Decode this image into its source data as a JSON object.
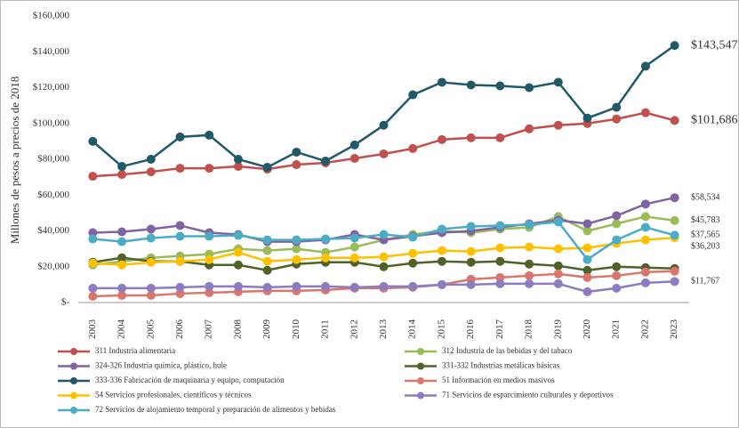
{
  "chart_data": {
    "type": "line",
    "y_axis_label": "Millones de pesos a precios de 2018",
    "categories": [
      "2003",
      "2004",
      "2005",
      "2006",
      "2007",
      "2008",
      "2009",
      "2010",
      "2011",
      "2012",
      "2013",
      "2014",
      "2015",
      "2016",
      "2017",
      "2018",
      "2019",
      "2020",
      "2021",
      "2022",
      "2023"
    ],
    "ylim": [
      0,
      160000
    ],
    "yticks": [
      {
        "value": 0,
        "label": "$-"
      },
      {
        "value": 20000,
        "label": "$20,000"
      },
      {
        "value": 40000,
        "label": "$40,000"
      },
      {
        "value": 60000,
        "label": "$60,000"
      },
      {
        "value": 80000,
        "label": "$80,000"
      },
      {
        "value": 100000,
        "label": "$100,000"
      },
      {
        "value": 120000,
        "label": "$120,000"
      },
      {
        "value": 140000,
        "label": "$140,000"
      },
      {
        "value": 160000,
        "label": "$160,000"
      }
    ],
    "grid": false,
    "series": [
      {
        "name": "311 Industria alimentaria",
        "color": "#c0504d",
        "values": [
          70500,
          71500,
          73000,
          75000,
          75000,
          76000,
          74500,
          77000,
          78000,
          80500,
          83000,
          86000,
          91000,
          92000,
          92000,
          97000,
          99000,
          100000,
          102500,
          106000,
          101686
        ],
        "value_labels": [
          null,
          null,
          null,
          null,
          null,
          null,
          null,
          null,
          null,
          null,
          null,
          null,
          null,
          null,
          null,
          null,
          null,
          null,
          null,
          null,
          "$101,686"
        ]
      },
      {
        "name": "312 Industria de las bebidas y del tabaco",
        "color": "#9bbb59",
        "values": [
          21000,
          23000,
          25000,
          26000,
          27000,
          30000,
          29000,
          30000,
          28000,
          31000,
          35000,
          38000,
          40000,
          39000,
          41000,
          42000,
          48000,
          40000,
          44000,
          48000,
          45783
        ],
        "value_labels": [
          null,
          null,
          null,
          null,
          null,
          null,
          null,
          null,
          null,
          null,
          null,
          null,
          null,
          null,
          null,
          null,
          null,
          null,
          null,
          null,
          "$45,783"
        ]
      },
      {
        "name": "324-326 Industria química, plástico, hule",
        "color": "#8064a2",
        "values": [
          39000,
          39500,
          41000,
          43000,
          39000,
          38000,
          34000,
          34000,
          35000,
          38000,
          35000,
          37000,
          39000,
          40000,
          42000,
          44000,
          46000,
          44000,
          48500,
          55000,
          58534
        ],
        "value_labels": [
          null,
          null,
          null,
          null,
          null,
          null,
          null,
          null,
          null,
          null,
          null,
          null,
          null,
          null,
          null,
          null,
          null,
          null,
          null,
          null,
          "$58,534"
        ]
      },
      {
        "name": "331-332 Industrias metálicas básicas",
        "color": "#4f6228",
        "values": [
          22500,
          25000,
          23000,
          23000,
          21000,
          21000,
          18000,
          21500,
          22500,
          22500,
          20000,
          22000,
          23000,
          22500,
          23000,
          21500,
          20500,
          18000,
          20000,
          19500,
          19000
        ]
      },
      {
        "name": "333-336 Fabricación de maquinaria y equipo, computación",
        "color": "#215968",
        "values": [
          90000,
          76000,
          80000,
          92500,
          93500,
          80000,
          75500,
          84000,
          79000,
          88000,
          99000,
          116000,
          123000,
          121500,
          121000,
          120000,
          123000,
          103000,
          109000,
          132000,
          143547
        ],
        "value_labels": [
          null,
          null,
          null,
          null,
          null,
          null,
          null,
          null,
          null,
          null,
          null,
          null,
          null,
          null,
          null,
          null,
          null,
          null,
          null,
          null,
          "$143,547"
        ]
      },
      {
        "name": "51 Información en medios masivos",
        "color": "#d9776f",
        "values": [
          3500,
          4000,
          4000,
          5000,
          5500,
          6000,
          6500,
          6500,
          7000,
          8000,
          8000,
          8500,
          10000,
          13000,
          14000,
          15000,
          16000,
          14000,
          15000,
          17000,
          17500
        ]
      },
      {
        "name": "54 Servicios profesionales, científicos y técnicos",
        "color": "#ffc000",
        "values": [
          22000,
          21000,
          22500,
          23000,
          24000,
          28000,
          23000,
          24000,
          25000,
          25000,
          25500,
          27500,
          29000,
          28500,
          30500,
          31000,
          30000,
          30500,
          33000,
          35000,
          36203
        ],
        "value_labels": [
          null,
          null,
          null,
          null,
          null,
          null,
          null,
          null,
          null,
          null,
          null,
          null,
          null,
          null,
          null,
          null,
          null,
          null,
          null,
          null,
          "$36,203"
        ]
      },
      {
        "name": "71 Servicios de esparcimiento culturales y deportivos",
        "color": "#8e7cc3",
        "values": [
          8000,
          8000,
          8000,
          8500,
          9000,
          9000,
          8500,
          9000,
          9000,
          8500,
          9000,
          9000,
          10000,
          10000,
          10500,
          10500,
          10500,
          6000,
          8000,
          11000,
          11767
        ],
        "value_labels": [
          null,
          null,
          null,
          null,
          null,
          null,
          null,
          null,
          null,
          null,
          null,
          null,
          null,
          null,
          null,
          null,
          null,
          null,
          null,
          null,
          "$11,767"
        ]
      },
      {
        "name": "72 Servicios de alojamiento temporal y preparación de alimentos y bebidas",
        "color": "#4bacc6",
        "values": [
          35500,
          34000,
          36000,
          37000,
          37000,
          37500,
          35000,
          35000,
          35500,
          36000,
          38000,
          36500,
          41000,
          42500,
          43000,
          43500,
          45000,
          24000,
          35000,
          42000,
          37565
        ],
        "value_labels": [
          null,
          null,
          null,
          null,
          null,
          null,
          null,
          null,
          null,
          null,
          null,
          null,
          null,
          null,
          null,
          null,
          null,
          null,
          null,
          null,
          "$37,565"
        ]
      }
    ]
  }
}
